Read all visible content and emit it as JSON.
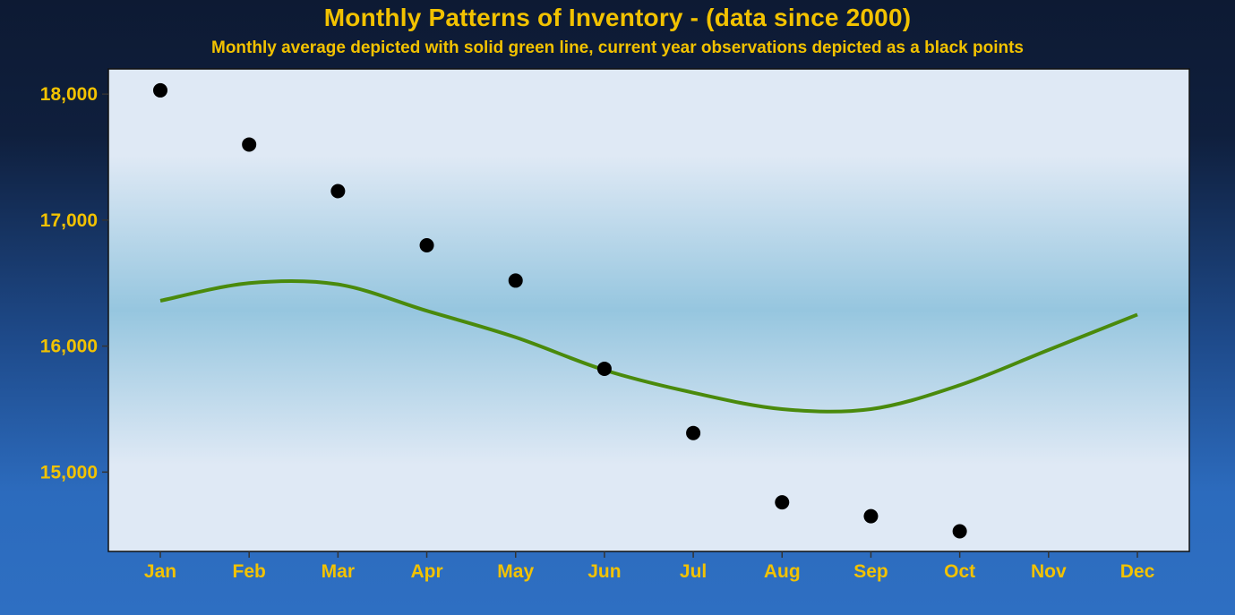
{
  "title": "Monthly Patterns of Inventory - (data since 2000)",
  "subtitle": "Monthly average depicted with solid green line, current year observations depicted as a black points",
  "colors": {
    "text": "#f2c200",
    "average_line": "#4a8a0c",
    "points": "#000000",
    "panel_edge": "#dfe9f5",
    "panel_center": "#96c6df"
  },
  "chart_data": {
    "type": "line",
    "categories": [
      "Jan",
      "Feb",
      "Mar",
      "Apr",
      "May",
      "Jun",
      "Jul",
      "Aug",
      "Sep",
      "Oct",
      "Nov",
      "Dec"
    ],
    "ylim": [
      14370,
      18200
    ],
    "yticks": [
      15000,
      16000,
      17000,
      18000
    ],
    "ytick_labels": [
      "15,000",
      "16,000",
      "17,000",
      "18,000"
    ],
    "series": [
      {
        "name": "Monthly average",
        "style": "line",
        "values": [
          16360,
          16500,
          16490,
          16280,
          16070,
          15810,
          15630,
          15500,
          15500,
          15690,
          15970,
          16250
        ]
      },
      {
        "name": "Current year observations",
        "style": "points",
        "values": [
          18030,
          17600,
          17230,
          16800,
          16520,
          15820,
          15310,
          14760,
          14650,
          14530,
          null,
          null
        ]
      }
    ],
    "xlabel": "",
    "ylabel": ""
  }
}
